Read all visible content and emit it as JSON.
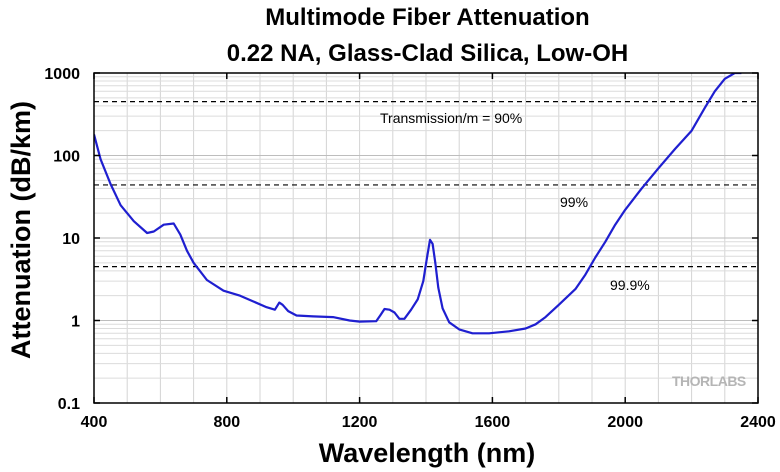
{
  "chart_data": {
    "type": "line",
    "title": "Multimode Fiber Attenuation",
    "subtitle": "0.22 NA, Glass-Clad Silica, Low-OH",
    "xlabel": "Wavelength (nm)",
    "ylabel": "Attenuation (dB/km)",
    "xlim": [
      400,
      2400
    ],
    "ylim": [
      0.1,
      1000
    ],
    "y_scale": "log",
    "x_ticks": [
      "400",
      "800",
      "1200",
      "1600",
      "2000",
      "2400"
    ],
    "y_ticks": [
      "0.1",
      "1",
      "10",
      "100",
      "1000"
    ],
    "grid": true,
    "series_color": "#1f1fd0",
    "series": [
      {
        "x": [
          400,
          420,
          450,
          480,
          520,
          560,
          580,
          610,
          640,
          660,
          680,
          700,
          740,
          790,
          840,
          880,
          920,
          945,
          958,
          968,
          985,
          1010,
          1060,
          1120,
          1170,
          1200,
          1250,
          1262,
          1275,
          1290,
          1305,
          1320,
          1335,
          1355,
          1375,
          1392,
          1402,
          1412,
          1420,
          1428,
          1437,
          1450,
          1470,
          1500,
          1540,
          1590,
          1650,
          1700,
          1730,
          1760,
          1800,
          1850,
          1880,
          1910,
          1940,
          1970,
          2000,
          2050,
          2100,
          2150,
          2200,
          2240,
          2270,
          2300,
          2330,
          2350
        ],
        "y": [
          180,
          90,
          45,
          25,
          16,
          11.5,
          12,
          14.5,
          15,
          11,
          7,
          5,
          3.1,
          2.3,
          2.0,
          1.7,
          1.45,
          1.35,
          1.65,
          1.55,
          1.3,
          1.15,
          1.12,
          1.1,
          1.0,
          0.97,
          0.98,
          1.15,
          1.38,
          1.35,
          1.25,
          1.05,
          1.05,
          1.35,
          1.8,
          3.0,
          5.5,
          9.5,
          8.5,
          5.0,
          2.5,
          1.4,
          0.95,
          0.78,
          0.7,
          0.7,
          0.74,
          0.8,
          0.9,
          1.1,
          1.55,
          2.4,
          3.6,
          5.8,
          9.0,
          14.5,
          22,
          40,
          70,
          120,
          200,
          380,
          600,
          850,
          1000,
          1000
        ]
      }
    ],
    "reference_lines": [
      {
        "y": 4.5,
        "label": "99.9%"
      },
      {
        "y": 44,
        "label": "99%"
      },
      {
        "y": 450,
        "label": "Transmission/m = 90%"
      }
    ],
    "watermark": "THORLABS"
  }
}
